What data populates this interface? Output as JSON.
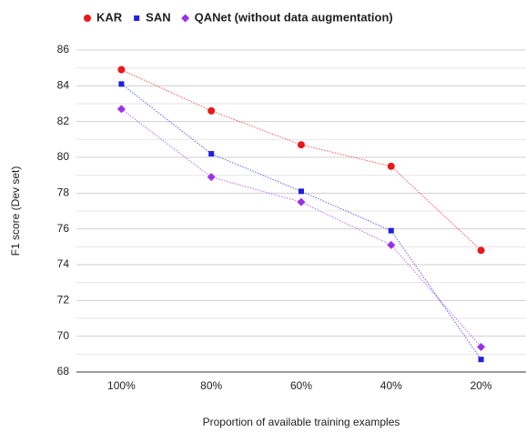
{
  "chart_data": {
    "type": "line",
    "x_label": "Proportion of available training examples",
    "y_label": "F1 score (Dev set)",
    "categories": [
      "100%",
      "80%",
      "60%",
      "40%",
      "20%"
    ],
    "series": [
      {
        "name": "KAR",
        "color": "#e8191a",
        "marker": "circle",
        "values": [
          84.9,
          82.6,
          80.7,
          79.5,
          74.8
        ]
      },
      {
        "name": "SAN",
        "color": "#1f1fe0",
        "marker": "square",
        "values": [
          84.1,
          80.2,
          78.1,
          75.9,
          68.7
        ]
      },
      {
        "name": "QANet (without data augmentation)",
        "color": "#9b30e8",
        "marker": "diamond",
        "values": [
          82.7,
          78.9,
          77.5,
          75.1,
          69.4
        ]
      }
    ],
    "ylim": [
      68,
      86
    ],
    "yticks": [
      68,
      70,
      72,
      74,
      76,
      78,
      80,
      82,
      84,
      86
    ],
    "yminorticks": [
      69,
      71,
      73,
      75,
      77,
      79,
      81,
      83,
      85
    ],
    "grid": true,
    "legend": "top"
  }
}
